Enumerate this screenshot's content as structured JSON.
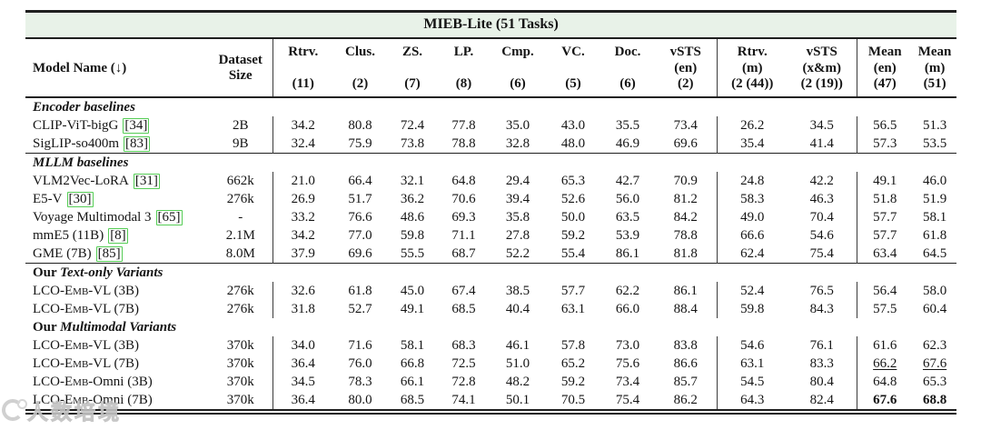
{
  "table": {
    "title": "MIEB-Lite (51 Tasks)",
    "title_band_color": "#e8f2e8",
    "citation_box_color": "#55cc55",
    "columns": [
      {
        "id": "model-name",
        "label": "Model Name (↓)",
        "layout": "single"
      },
      {
        "id": "dataset-size",
        "lines": [
          "Dataset",
          "Size"
        ],
        "layout": "center",
        "bar": true
      },
      {
        "id": "rtrv",
        "lines": [
          "Rtrv.",
          "(11)"
        ]
      },
      {
        "id": "clus",
        "lines": [
          "Clus.",
          "(2)"
        ]
      },
      {
        "id": "zs",
        "lines": [
          "ZS.",
          "(7)"
        ]
      },
      {
        "id": "lp",
        "lines": [
          "LP.",
          "(8)"
        ]
      },
      {
        "id": "cmp",
        "lines": [
          "Cmp.",
          "(6)"
        ]
      },
      {
        "id": "vc",
        "lines": [
          "VC.",
          "(5)"
        ]
      },
      {
        "id": "doc",
        "lines": [
          "Doc.",
          "(6)"
        ]
      },
      {
        "id": "vsts-en",
        "lines": [
          "vSTS",
          "(en)",
          "(2)"
        ],
        "bar": true
      },
      {
        "id": "rtrv-m",
        "lines": [
          "Rtrv.",
          "(m)",
          "(2 (44))"
        ]
      },
      {
        "id": "vsts-xm",
        "lines": [
          "vSTS",
          "(x&m)",
          "(2 (19))"
        ],
        "bar": true
      },
      {
        "id": "mean-en",
        "lines": [
          "Mean",
          "(en)",
          "(47)"
        ]
      },
      {
        "id": "mean-m",
        "lines": [
          "Mean",
          "(m)",
          "(51)"
        ]
      }
    ],
    "sections": [
      {
        "label": {
          "prefix": "",
          "italic": "Encoder baselines"
        },
        "top_rule": false,
        "rows": [
          {
            "model": {
              "pre": "CLIP-ViT-bigG",
              "sc": "",
              "post": ""
            },
            "cite": "[34]",
            "size": "2B",
            "values": [
              "34.2",
              "80.8",
              "72.4",
              "77.8",
              "35.0",
              "43.0",
              "35.5",
              "73.4",
              "26.2",
              "34.5",
              "56.5",
              "51.3"
            ],
            "value_styles": {}
          },
          {
            "model": {
              "pre": "SigLIP-so400m",
              "sc": "",
              "post": ""
            },
            "cite": "[83]",
            "size": "9B",
            "values": [
              "32.4",
              "75.9",
              "73.8",
              "78.8",
              "32.8",
              "48.0",
              "46.9",
              "69.6",
              "35.4",
              "41.4",
              "57.3",
              "53.5"
            ],
            "value_styles": {}
          }
        ]
      },
      {
        "label": {
          "prefix": "",
          "italic": "MLLM baselines"
        },
        "top_rule": true,
        "rows": [
          {
            "model": {
              "pre": "VLM2Vec-LoRA",
              "sc": "",
              "post": ""
            },
            "cite": "[31]",
            "size": "662k",
            "values": [
              "21.0",
              "66.4",
              "32.1",
              "64.8",
              "29.4",
              "65.3",
              "42.7",
              "70.9",
              "24.8",
              "42.2",
              "49.1",
              "46.0"
            ],
            "value_styles": {}
          },
          {
            "model": {
              "pre": "E5-V",
              "sc": "",
              "post": ""
            },
            "cite": "[30]",
            "size": "276k",
            "values": [
              "26.9",
              "51.7",
              "36.2",
              "70.6",
              "39.4",
              "52.6",
              "56.0",
              "81.2",
              "58.3",
              "46.3",
              "51.8",
              "51.9"
            ],
            "value_styles": {}
          },
          {
            "model": {
              "pre": "Voyage Multimodal 3",
              "sc": "",
              "post": ""
            },
            "cite": "[65]",
            "size": "-",
            "values": [
              "33.2",
              "76.6",
              "48.6",
              "69.3",
              "35.8",
              "50.0",
              "63.5",
              "84.2",
              "49.0",
              "70.4",
              "57.7",
              "58.1"
            ],
            "value_styles": {}
          },
          {
            "model": {
              "pre": "mmE5 (11B)",
              "sc": "",
              "post": ""
            },
            "cite": "[8]",
            "size": "2.1M",
            "values": [
              "34.2",
              "77.0",
              "59.8",
              "71.1",
              "27.8",
              "59.2",
              "53.9",
              "78.8",
              "66.6",
              "54.6",
              "57.7",
              "61.8"
            ],
            "value_styles": {}
          },
          {
            "model": {
              "pre": "GME (7B)",
              "sc": "",
              "post": ""
            },
            "cite": "[85]",
            "size": "8.0M",
            "values": [
              "37.9",
              "69.6",
              "55.5",
              "68.7",
              "52.2",
              "55.4",
              "86.1",
              "81.8",
              "62.4",
              "75.4",
              "63.4",
              "64.5"
            ],
            "value_styles": {}
          }
        ]
      },
      {
        "label": {
          "prefix": "Our ",
          "italic": "Text-only Variants"
        },
        "top_rule": true,
        "rows": [
          {
            "model": {
              "pre": "LCO-",
              "sc": "Emb",
              "post": "-VL (3B)"
            },
            "cite": "",
            "size": "276k",
            "values": [
              "32.6",
              "61.8",
              "45.0",
              "67.4",
              "38.5",
              "57.7",
              "62.2",
              "86.1",
              "52.4",
              "76.5",
              "56.4",
              "58.0"
            ],
            "value_styles": {}
          },
          {
            "model": {
              "pre": "LCO-",
              "sc": "Emb",
              "post": "-VL (7B)"
            },
            "cite": "",
            "size": "276k",
            "values": [
              "31.8",
              "52.7",
              "49.1",
              "68.5",
              "40.4",
              "63.1",
              "66.0",
              "88.4",
              "59.8",
              "84.3",
              "57.5",
              "60.4"
            ],
            "value_styles": {}
          }
        ]
      },
      {
        "label": {
          "prefix": "Our ",
          "italic": "Multimodal Variants"
        },
        "top_rule": false,
        "rows": [
          {
            "model": {
              "pre": "LCO-",
              "sc": "Emb",
              "post": "-VL (3B)"
            },
            "cite": "",
            "size": "370k",
            "values": [
              "34.0",
              "71.6",
              "58.1",
              "68.3",
              "46.1",
              "57.8",
              "73.0",
              "83.8",
              "54.6",
              "76.1",
              "61.6",
              "62.3"
            ],
            "value_styles": {}
          },
          {
            "model": {
              "pre": "LCO-",
              "sc": "Emb",
              "post": "-VL (7B)"
            },
            "cite": "",
            "size": "370k",
            "values": [
              "36.4",
              "76.0",
              "66.8",
              "72.5",
              "51.0",
              "65.2",
              "75.6",
              "86.6",
              "63.1",
              "83.3",
              "66.2",
              "67.6"
            ],
            "value_styles": {
              "10": "underline",
              "11": "underline"
            }
          },
          {
            "model": {
              "pre": "LCO-",
              "sc": "Emb",
              "post": "-Omni (3B)"
            },
            "cite": "",
            "size": "370k",
            "values": [
              "34.5",
              "78.3",
              "66.1",
              "72.8",
              "48.2",
              "59.2",
              "73.4",
              "85.7",
              "54.5",
              "80.4",
              "64.8",
              "65.3"
            ],
            "value_styles": {}
          },
          {
            "model": {
              "pre": "LCO-",
              "sc": "Emb",
              "post": "-Omni (7B)"
            },
            "cite": "",
            "size": "370k",
            "values": [
              "36.4",
              "80.0",
              "68.5",
              "74.1",
              "50.1",
              "70.5",
              "75.4",
              "86.2",
              "64.3",
              "82.4",
              "67.6",
              "68.8"
            ],
            "value_styles": {
              "10": "bold",
              "11": "bold"
            }
          }
        ]
      }
    ]
  },
  "watermark": {
    "text": "人数培境"
  }
}
